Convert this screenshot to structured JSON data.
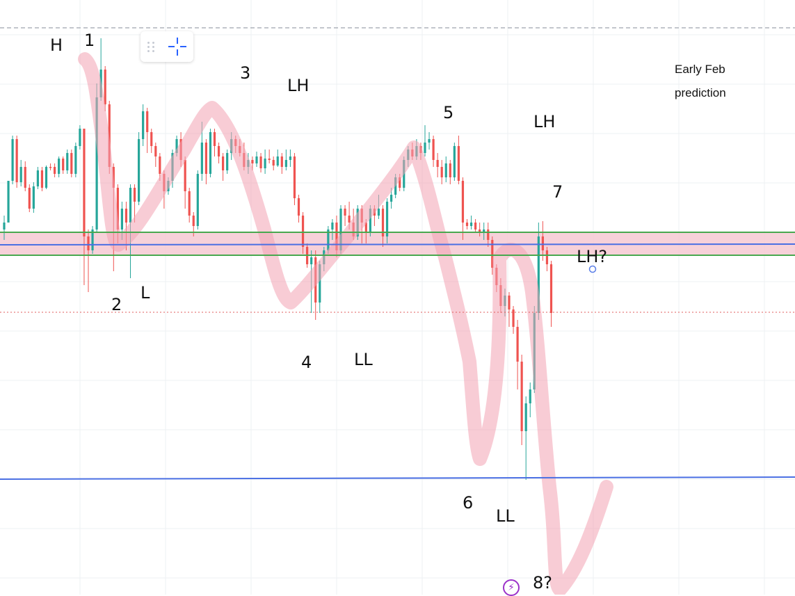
{
  "chart_data": {
    "type": "candlestick",
    "annotations": {
      "swing_labels": [
        "H",
        "1",
        "2",
        "L",
        "3",
        "LH",
        "4",
        "LL",
        "5",
        "LH",
        "7",
        "LH?",
        "6",
        "LL",
        "8?"
      ],
      "note_line1": "Early Feb",
      "note_line2": "prediction"
    },
    "zones": [
      {
        "type": "support-resistance-band",
        "color": "#f6c9d2"
      }
    ],
    "lines": [
      {
        "type": "horizontal",
        "color": "#4a6fe3"
      },
      {
        "type": "horizontal",
        "color": "#4a6fe3"
      },
      {
        "type": "horizontal",
        "color": "#48a84f"
      },
      {
        "type": "horizontal",
        "color": "#48a84f"
      }
    ],
    "candles_relative": [
      [
        330,
        320,
        345,
        310
      ],
      [
        320,
        260,
        265,
        320
      ],
      [
        260,
        200,
        195,
        265
      ],
      [
        200,
        262,
        195,
        270
      ],
      [
        262,
        240,
        230,
        268
      ],
      [
        240,
        270,
        232,
        275
      ],
      [
        270,
        300,
        265,
        305
      ],
      [
        300,
        268,
        262,
        306
      ],
      [
        268,
        245,
        240,
        272
      ],
      [
        245,
        270,
        240,
        275
      ],
      [
        270,
        240,
        238,
        272
      ],
      [
        240,
        240,
        235,
        245
      ],
      [
        240,
        250,
        235,
        255
      ],
      [
        250,
        228,
        225,
        255
      ],
      [
        228,
        245,
        225,
        250
      ],
      [
        245,
        220,
        215,
        250
      ],
      [
        220,
        250,
        215,
        255
      ],
      [
        250,
        210,
        205,
        255
      ],
      [
        210,
        185,
        180,
        215
      ],
      [
        185,
        340,
        330,
        410
      ],
      [
        340,
        360,
        330,
        420
      ],
      [
        360,
        330,
        325,
        365
      ],
      [
        330,
        140,
        120,
        335
      ],
      [
        140,
        100,
        55,
        145
      ],
      [
        100,
        150,
        95,
        160
      ],
      [
        150,
        240,
        145,
        250
      ],
      [
        240,
        270,
        235,
        390
      ],
      [
        270,
        330,
        265,
        350
      ],
      [
        330,
        300,
        290,
        345
      ],
      [
        300,
        320,
        290,
        360
      ],
      [
        320,
        270,
        265,
        400
      ],
      [
        270,
        290,
        265,
        320
      ],
      [
        290,
        200,
        190,
        295
      ],
      [
        200,
        160,
        150,
        210
      ],
      [
        160,
        190,
        155,
        220
      ],
      [
        190,
        210,
        185,
        220
      ],
      [
        210,
        225,
        205,
        240
      ],
      [
        225,
        250,
        220,
        260
      ],
      [
        250,
        275,
        245,
        300
      ],
      [
        275,
        260,
        255,
        280
      ],
      [
        260,
        220,
        215,
        270
      ],
      [
        220,
        200,
        195,
        225
      ],
      [
        200,
        230,
        190,
        240
      ],
      [
        230,
        275,
        225,
        300
      ],
      [
        275,
        310,
        270,
        320
      ],
      [
        310,
        325,
        305,
        340
      ],
      [
        325,
        250,
        245,
        330
      ],
      [
        250,
        205,
        175,
        260
      ],
      [
        205,
        250,
        200,
        265
      ],
      [
        250,
        190,
        185,
        255
      ],
      [
        190,
        210,
        185,
        225
      ],
      [
        210,
        225,
        205,
        235
      ],
      [
        225,
        245,
        220,
        260
      ],
      [
        245,
        220,
        215,
        250
      ],
      [
        220,
        200,
        190,
        230
      ],
      [
        200,
        210,
        195,
        220
      ],
      [
        210,
        220,
        200,
        225
      ],
      [
        220,
        240,
        205,
        245
      ],
      [
        240,
        230,
        220,
        250
      ],
      [
        230,
        235,
        225,
        245
      ],
      [
        235,
        225,
        218,
        240
      ],
      [
        225,
        242,
        220,
        248
      ],
      [
        242,
        228,
        215,
        250
      ],
      [
        228,
        230,
        215,
        235
      ],
      [
        230,
        238,
        225,
        245
      ],
      [
        238,
        225,
        215,
        240
      ],
      [
        225,
        240,
        220,
        250
      ],
      [
        240,
        230,
        215,
        245
      ],
      [
        230,
        225,
        215,
        240
      ],
      [
        225,
        285,
        220,
        295
      ],
      [
        285,
        310,
        280,
        320
      ],
      [
        310,
        355,
        305,
        365
      ],
      [
        355,
        380,
        350,
        385
      ],
      [
        380,
        370,
        360,
        450
      ],
      [
        370,
        435,
        360,
        460
      ],
      [
        435,
        380,
        375,
        450
      ],
      [
        380,
        360,
        355,
        390
      ],
      [
        360,
        330,
        325,
        365
      ],
      [
        330,
        320,
        315,
        345
      ],
      [
        320,
        360,
        310,
        370
      ],
      [
        360,
        300,
        295,
        365
      ],
      [
        300,
        310,
        295,
        325
      ],
      [
        310,
        320,
        290,
        330
      ],
      [
        320,
        340,
        300,
        345
      ],
      [
        340,
        300,
        295,
        345
      ],
      [
        300,
        320,
        295,
        350
      ],
      [
        320,
        335,
        315,
        350
      ],
      [
        335,
        300,
        295,
        340
      ],
      [
        300,
        310,
        295,
        325
      ],
      [
        310,
        300,
        280,
        315
      ],
      [
        300,
        340,
        295,
        355
      ],
      [
        340,
        290,
        285,
        350
      ],
      [
        290,
        280,
        270,
        300
      ],
      [
        280,
        255,
        250,
        285
      ],
      [
        255,
        270,
        250,
        275
      ],
      [
        270,
        230,
        225,
        275
      ],
      [
        230,
        215,
        210,
        240
      ],
      [
        215,
        225,
        205,
        230
      ],
      [
        225,
        210,
        200,
        230
      ],
      [
        210,
        220,
        205,
        230
      ],
      [
        220,
        205,
        180,
        225
      ],
      [
        205,
        200,
        190,
        215
      ],
      [
        200,
        230,
        195,
        240
      ],
      [
        230,
        240,
        220,
        255
      ],
      [
        240,
        255,
        230,
        265
      ],
      [
        255,
        235,
        225,
        262
      ],
      [
        235,
        255,
        230,
        265
      ],
      [
        255,
        210,
        205,
        260
      ],
      [
        210,
        260,
        195,
        265
      ],
      [
        260,
        320,
        255,
        345
      ],
      [
        320,
        325,
        315,
        330
      ],
      [
        325,
        320,
        310,
        330
      ],
      [
        320,
        330,
        315,
        335
      ],
      [
        330,
        335,
        320,
        340
      ],
      [
        335,
        330,
        320,
        345
      ],
      [
        330,
        345,
        320,
        355
      ],
      [
        345,
        385,
        340,
        395
      ],
      [
        385,
        410,
        380,
        420
      ],
      [
        410,
        440,
        400,
        450
      ],
      [
        440,
        425,
        415,
        455
      ],
      [
        425,
        445,
        420,
        470
      ],
      [
        445,
        470,
        440,
        480
      ],
      [
        470,
        520,
        460,
        560
      ],
      [
        520,
        620,
        510,
        640
      ],
      [
        620,
        580,
        570,
        690
      ],
      [
        580,
        560,
        550,
        600
      ],
      [
        560,
        450,
        440,
        565
      ],
      [
        450,
        340,
        320,
        460
      ],
      [
        340,
        360,
        318,
        375
      ],
      [
        360,
        380,
        355,
        390
      ],
      [
        380,
        450,
        375,
        470
      ]
    ]
  }
}
